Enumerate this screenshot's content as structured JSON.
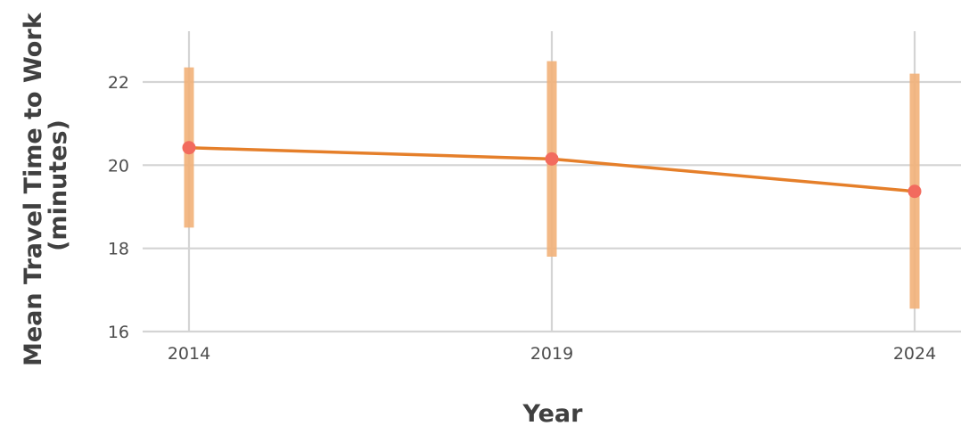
{
  "chart_data": {
    "type": "line",
    "title": "",
    "xlabel": "Year",
    "ylabel_lines": [
      "Mean Travel Time to Work",
      "(minutes)"
    ],
    "x": [
      2014,
      2019,
      2024
    ],
    "x_ticks": [
      "2014",
      "2019",
      "2024"
    ],
    "y_ticks": [
      "16",
      "18",
      "20",
      "22"
    ],
    "ylim": [
      16,
      23.2
    ],
    "grid": true,
    "legend": "none",
    "series": [
      {
        "values": [
          20.42,
          20.15,
          19.37
        ],
        "error_low": [
          18.5,
          17.8,
          16.55
        ],
        "error_high": [
          22.35,
          22.5,
          22.2
        ]
      }
    ],
    "colors": {
      "line": "#e57f2a",
      "point": "#f26b5e",
      "error_bar": "#f2b27a",
      "grid": "#d4d4d4",
      "text": "#4d4d4d"
    }
  }
}
